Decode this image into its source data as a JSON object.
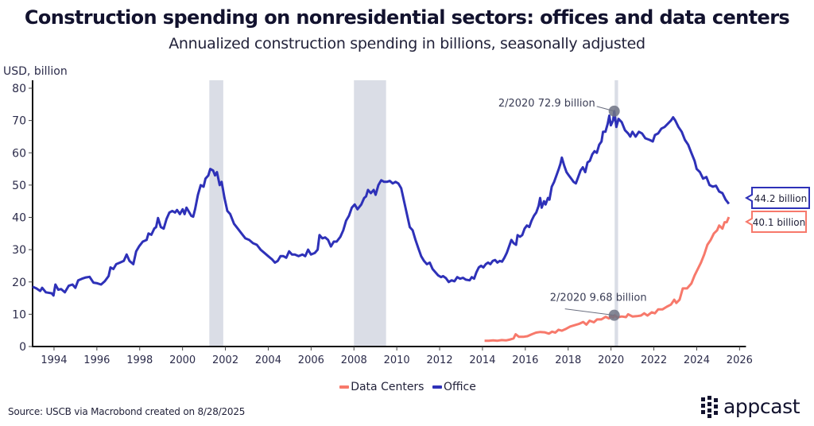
{
  "header": {
    "title": "Construction spending on nonresidential sectors: offices and data centers",
    "subtitle": "Annualized construction spending in billions, seasonally adjusted"
  },
  "footer": {
    "source": "Source: USCB via Macrobond created on 8/28/2025",
    "logo_text": "appcast",
    "logo_icon": "dot-grid-icon"
  },
  "chart_data": {
    "type": "line",
    "title": "Construction spending on nonresidential sectors: offices and data centers",
    "subtitle": "Annualized construction spending in billions, seasonally adjusted",
    "xlabel": "",
    "ylabel": "USD, billion",
    "xlim": [
      1993,
      2026.3
    ],
    "ylim": [
      0,
      82
    ],
    "x_ticks": [
      1994,
      1996,
      1998,
      2000,
      2002,
      2004,
      2006,
      2008,
      2010,
      2012,
      2014,
      2016,
      2018,
      2020,
      2022,
      2024,
      2026
    ],
    "y_ticks": [
      0,
      10,
      20,
      30,
      40,
      50,
      60,
      70,
      80
    ],
    "grid": false,
    "legend_position": "bottom-center",
    "recessions": [
      [
        2001.25,
        2001.9
      ],
      [
        2008.0,
        2009.5
      ],
      [
        2020.17,
        2020.33
      ]
    ],
    "series": [
      {
        "name": "Office",
        "color": "#2e31b8",
        "points": [
          [
            1993.0,
            18.5
          ],
          [
            1993.2,
            18.0
          ],
          [
            1993.4,
            17.2
          ],
          [
            1993.5,
            18.2
          ],
          [
            1993.7,
            16.8
          ],
          [
            1994.0,
            16.5
          ],
          [
            1994.1,
            15.8
          ],
          [
            1994.2,
            19.2
          ],
          [
            1994.35,
            17.6
          ],
          [
            1994.5,
            17.8
          ],
          [
            1994.7,
            16.8
          ],
          [
            1994.9,
            18.8
          ],
          [
            1995.1,
            19.2
          ],
          [
            1995.25,
            18.2
          ],
          [
            1995.4,
            20.5
          ],
          [
            1995.6,
            21.0
          ],
          [
            1995.8,
            21.4
          ],
          [
            1996.0,
            21.6
          ],
          [
            1996.2,
            19.8
          ],
          [
            1996.4,
            19.6
          ],
          [
            1996.6,
            19.2
          ],
          [
            1996.8,
            20.2
          ],
          [
            1997.0,
            21.8
          ],
          [
            1997.1,
            24.5
          ],
          [
            1997.25,
            24.0
          ],
          [
            1997.4,
            25.5
          ],
          [
            1997.6,
            26.0
          ],
          [
            1997.8,
            26.5
          ],
          [
            1997.95,
            28.5
          ],
          [
            1998.1,
            26.5
          ],
          [
            1998.3,
            25.5
          ],
          [
            1998.45,
            29.5
          ],
          [
            1998.6,
            31.0
          ],
          [
            1998.8,
            32.5
          ],
          [
            1999.0,
            33.0
          ],
          [
            1999.1,
            35.0
          ],
          [
            1999.25,
            34.6
          ],
          [
            1999.4,
            36.5
          ],
          [
            1999.5,
            37.0
          ],
          [
            1999.6,
            39.8
          ],
          [
            1999.75,
            37.0
          ],
          [
            1999.9,
            36.5
          ],
          [
            2000.05,
            39.5
          ],
          [
            2000.2,
            41.5
          ],
          [
            2000.35,
            42.0
          ],
          [
            2000.5,
            41.5
          ],
          [
            2000.6,
            42.3
          ],
          [
            2000.75,
            41.0
          ],
          [
            2000.9,
            42.5
          ],
          [
            2001.0,
            41.0
          ],
          [
            2001.1,
            43.0
          ],
          [
            2001.2,
            42.0
          ],
          [
            2001.35,
            40.5
          ],
          [
            2001.45,
            40.2
          ],
          [
            2001.55,
            42.5
          ],
          [
            2001.7,
            47.0
          ],
          [
            2001.85,
            50.0
          ],
          [
            2002.0,
            49.5
          ],
          [
            2002.1,
            52.0
          ],
          [
            2002.25,
            53.0
          ],
          [
            2002.35,
            55.0
          ],
          [
            2002.5,
            54.5
          ],
          [
            2002.6,
            53.0
          ],
          [
            2002.7,
            54.0
          ],
          [
            2002.85,
            50.0
          ],
          [
            2002.95,
            51.0
          ],
          [
            2003.1,
            46.0
          ],
          [
            2003.25,
            42.0
          ],
          [
            2003.4,
            41.0
          ],
          [
            2003.6,
            38.0
          ],
          [
            2003.8,
            36.5
          ],
          [
            2004.0,
            35.0
          ],
          [
            2004.2,
            33.5
          ],
          [
            2004.4,
            33.0
          ],
          [
            2004.6,
            32.0
          ],
          [
            2004.8,
            31.5
          ],
          [
            2005.0,
            30.0
          ],
          [
            2005.2,
            29.0
          ],
          [
            2005.4,
            28.0
          ],
          [
            2005.6,
            27.0
          ],
          [
            2005.75,
            26.0
          ],
          [
            2005.9,
            26.5
          ],
          [
            2006.05,
            28.0
          ],
          [
            2006.2,
            28.0
          ],
          [
            2006.35,
            27.5
          ],
          [
            2006.5,
            29.5
          ],
          [
            2006.65,
            28.5
          ],
          [
            2006.8,
            28.5
          ],
          [
            2007.0,
            28.0
          ],
          [
            2007.2,
            28.5
          ],
          [
            2007.35,
            28.0
          ],
          [
            2007.5,
            30.0
          ],
          [
            2007.65,
            28.5
          ],
          [
            2007.85,
            29.0
          ],
          [
            2008.0,
            30.0
          ],
          [
            2008.1,
            34.5
          ],
          [
            2008.25,
            33.5
          ],
          [
            2008.4,
            33.8
          ],
          [
            2008.55,
            33.0
          ],
          [
            2008.7,
            31.0
          ],
          [
            2008.85,
            32.5
          ],
          [
            2009.0,
            32.5
          ],
          [
            2009.2,
            34.0
          ],
          [
            2009.35,
            36.0
          ],
          [
            2009.5,
            39.0
          ],
          [
            2009.65,
            40.5
          ],
          [
            2009.8,
            43.0
          ],
          [
            2009.95,
            44.0
          ],
          [
            2010.1,
            42.5
          ],
          [
            2010.3,
            44.0
          ],
          [
            2010.45,
            46.0
          ],
          [
            2010.55,
            46.5
          ],
          [
            2010.65,
            48.5
          ],
          [
            2010.8,
            47.5
          ],
          [
            2010.95,
            48.5
          ],
          [
            2011.05,
            47.0
          ],
          [
            2011.2,
            50.0
          ],
          [
            2011.35,
            51.5
          ],
          [
            2011.5,
            51.0
          ],
          [
            2011.65,
            51.0
          ],
          [
            2011.8,
            51.3
          ],
          [
            2011.95,
            50.5
          ],
          [
            2012.1,
            51.0
          ],
          [
            2012.25,
            50.5
          ],
          [
            2012.4,
            49.0
          ],
          [
            2012.55,
            45.0
          ],
          [
            2012.7,
            41.0
          ],
          [
            2012.85,
            37.0
          ],
          [
            2013.0,
            36.0
          ],
          [
            2013.15,
            33.0
          ],
          [
            2013.3,
            30.5
          ],
          [
            2013.45,
            28.0
          ],
          [
            2013.6,
            26.5
          ],
          [
            2013.75,
            25.5
          ],
          [
            2013.9,
            26.0
          ],
          [
            2014.05,
            24.0
          ],
          [
            2014.2,
            23.0
          ],
          [
            2014.35,
            22.0
          ],
          [
            2014.5,
            21.5
          ],
          [
            2014.6,
            21.8
          ],
          [
            2014.75,
            21.2
          ],
          [
            2014.9,
            20.0
          ],
          [
            2015.05,
            20.5
          ],
          [
            2015.2,
            20.2
          ],
          [
            2015.35,
            21.5
          ],
          [
            2015.5,
            21.0
          ],
          [
            2015.65,
            21.3
          ],
          [
            2015.8,
            20.7
          ],
          [
            2016.0,
            20.5
          ]
        ]
      },
      {
        "name": "Data Centers",
        "color": "#f7796b",
        "points": [
          [
            2014.1,
            1.8
          ],
          [
            2014.3,
            1.8
          ],
          [
            2014.5,
            1.9
          ],
          [
            2014.7,
            1.8
          ],
          [
            2014.9,
            2.0
          ],
          [
            2015.1,
            1.9
          ],
          [
            2015.3,
            2.2
          ],
          [
            2015.45,
            2.5
          ],
          [
            2015.55,
            3.8
          ],
          [
            2015.7,
            3.0
          ],
          [
            2015.9,
            3.0
          ],
          [
            2016.1,
            3.2
          ],
          [
            2016.3,
            3.8
          ],
          [
            2016.5,
            4.3
          ],
          [
            2016.7,
            4.5
          ],
          [
            2016.9,
            4.4
          ],
          [
            2017.1,
            4.0
          ],
          [
            2017.25,
            4.6
          ],
          [
            2017.4,
            4.3
          ],
          [
            2017.55,
            5.2
          ],
          [
            2017.7,
            4.9
          ],
          [
            2017.9,
            5.5
          ],
          [
            2018.1,
            6.2
          ],
          [
            2018.3,
            6.6
          ],
          [
            2018.5,
            7.0
          ],
          [
            2018.7,
            7.6
          ],
          [
            2018.85,
            6.8
          ],
          [
            2019.0,
            8.0
          ],
          [
            2019.2,
            7.5
          ],
          [
            2019.35,
            8.4
          ],
          [
            2019.55,
            8.4
          ],
          [
            2019.75,
            9.2
          ],
          [
            2019.9,
            8.7
          ],
          [
            2020.0,
            9.5
          ],
          [
            2020.1,
            8.9
          ],
          [
            2020.17,
            9.68
          ],
          [
            2020.3,
            9.0
          ],
          [
            2020.5,
            9.3
          ],
          [
            2020.7,
            9.1
          ],
          [
            2020.8,
            10.0
          ],
          [
            2021.0,
            9.3
          ],
          [
            2021.2,
            9.4
          ],
          [
            2021.4,
            9.6
          ],
          [
            2021.55,
            10.3
          ],
          [
            2021.7,
            9.6
          ],
          [
            2021.9,
            10.6
          ],
          [
            2022.05,
            10.3
          ],
          [
            2022.2,
            11.5
          ],
          [
            2022.4,
            11.5
          ],
          [
            2022.6,
            12.3
          ],
          [
            2022.8,
            13.0
          ],
          [
            2022.95,
            14.5
          ],
          [
            2023.05,
            13.5
          ],
          [
            2023.2,
            14.5
          ],
          [
            2023.35,
            18.0
          ],
          [
            2023.55,
            18.0
          ],
          [
            2023.75,
            19.5
          ],
          [
            2023.9,
            22.0
          ],
          [
            2024.05,
            24.0
          ],
          [
            2024.2,
            26.0
          ],
          [
            2024.35,
            28.5
          ],
          [
            2024.5,
            31.5
          ],
          [
            2024.65,
            33.0
          ],
          [
            2024.8,
            35.0
          ],
          [
            2024.95,
            36.0
          ],
          [
            2025.05,
            37.5
          ],
          [
            2025.2,
            36.5
          ],
          [
            2025.3,
            38.5
          ],
          [
            2025.4,
            38.5
          ],
          [
            2025.5,
            40.1
          ]
        ]
      }
    ],
    "annotations": [
      {
        "text": "2/2020 72.9 billion",
        "series": "Office",
        "x": 2020.15,
        "y": 72.9
      },
      {
        "text": "2/2020 9.68 billion",
        "series": "Data Centers",
        "x": 2020.15,
        "y": 9.68
      }
    ],
    "end_labels": [
      {
        "text": "44.2 billion",
        "series": "Office",
        "value": 44.2,
        "color": "#2e31b8"
      },
      {
        "text": "40.1 billion",
        "series": "Data Centers",
        "value": 40.1,
        "color": "#f7796b"
      }
    ],
    "legend": [
      {
        "label": "Data Centers",
        "color": "#f7796b"
      },
      {
        "label": "Office",
        "color": "#2e31b8"
      }
    ]
  }
}
